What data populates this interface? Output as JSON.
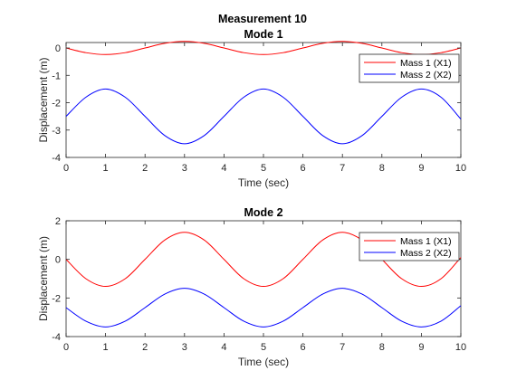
{
  "figure": {
    "suptitle": "Measurement 10"
  },
  "chart_data": [
    {
      "type": "line",
      "title": "Mode 1",
      "xlabel": "Time (sec)",
      "ylabel": "Displacement (m)",
      "xlim": [
        0,
        10
      ],
      "ylim": [
        -4,
        0.2
      ],
      "xticks": [
        0,
        1,
        2,
        3,
        4,
        5,
        6,
        7,
        8,
        9,
        10
      ],
      "yticks": [
        0,
        -1,
        -2,
        -3,
        -4
      ],
      "grid": false,
      "legend_position": "top-right",
      "series": [
        {
          "name": "Mass 1 (X1)",
          "color": "#ff0000",
          "x": [
            0,
            0.5,
            1,
            1.5,
            2,
            2.5,
            3,
            3.5,
            4,
            4.5,
            5,
            5.5,
            6,
            6.5,
            7,
            7.5,
            8,
            8.5,
            9,
            9.5,
            10
          ],
          "y": [
            0,
            -0.17,
            -0.24,
            -0.17,
            0,
            0.17,
            0.24,
            0.17,
            0,
            -0.17,
            -0.24,
            -0.17,
            0,
            0.17,
            0.24,
            0.17,
            0,
            -0.17,
            -0.24,
            -0.17,
            0
          ]
        },
        {
          "name": "Mass 2 (X2)",
          "color": "#0000ff",
          "x": [
            0,
            0.5,
            1,
            1.5,
            2,
            2.5,
            3,
            3.5,
            4,
            4.5,
            5,
            5.5,
            6,
            6.5,
            7,
            7.5,
            8,
            8.5,
            9,
            9.5,
            10
          ],
          "y": [
            -2.5,
            -1.8,
            -1.5,
            -1.8,
            -2.5,
            -3.2,
            -3.5,
            -3.2,
            -2.5,
            -1.8,
            -1.5,
            -1.8,
            -2.5,
            -3.2,
            -3.5,
            -3.2,
            -2.5,
            -1.8,
            -1.5,
            -1.8,
            -2.6
          ]
        }
      ]
    },
    {
      "type": "line",
      "title": "Mode 2",
      "xlabel": "Time (sec)",
      "ylabel": "Displacement (m)",
      "xlim": [
        0,
        10
      ],
      "ylim": [
        -4,
        2
      ],
      "xticks": [
        0,
        1,
        2,
        3,
        4,
        5,
        6,
        7,
        8,
        9,
        10
      ],
      "yticks": [
        2,
        0,
        -2,
        -4
      ],
      "grid": false,
      "legend_position": "top-right",
      "series": [
        {
          "name": "Mass 1 (X1)",
          "color": "#ff0000",
          "x": [
            0,
            0.5,
            1,
            1.5,
            2,
            2.5,
            3,
            3.5,
            4,
            4.5,
            5,
            5.5,
            6,
            6.5,
            7,
            7.5,
            8,
            8.5,
            9,
            9.5,
            10
          ],
          "y": [
            0,
            -1.0,
            -1.4,
            -1.0,
            0,
            1.0,
            1.4,
            1.0,
            0,
            -1.0,
            -1.4,
            -1.0,
            0,
            1.0,
            1.4,
            1.0,
            0,
            -1.0,
            -1.4,
            -1.0,
            0.1
          ]
        },
        {
          "name": "Mass 2 (X2)",
          "color": "#0000ff",
          "x": [
            0,
            0.5,
            1,
            1.5,
            2,
            2.5,
            3,
            3.5,
            4,
            4.5,
            5,
            5.5,
            6,
            6.5,
            7,
            7.5,
            8,
            8.5,
            9,
            9.5,
            10
          ],
          "y": [
            -2.5,
            -3.2,
            -3.5,
            -3.2,
            -2.5,
            -1.8,
            -1.5,
            -1.8,
            -2.5,
            -3.2,
            -3.5,
            -3.2,
            -2.5,
            -1.8,
            -1.5,
            -1.8,
            -2.5,
            -3.2,
            -3.5,
            -3.2,
            -2.4
          ]
        }
      ]
    }
  ]
}
